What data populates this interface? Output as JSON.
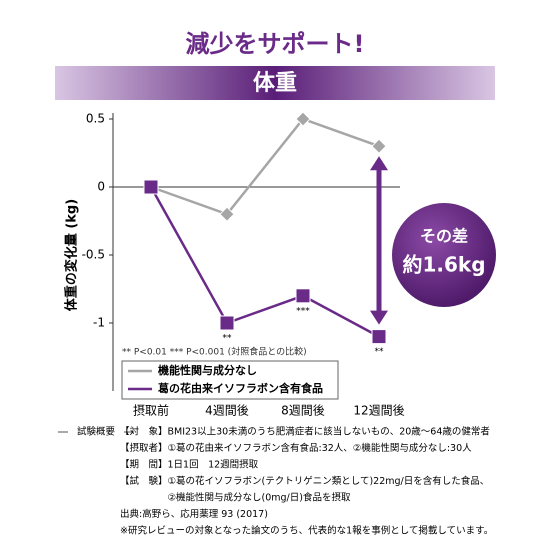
{
  "header": {
    "title": "減少をサポート!",
    "banner": "体重"
  },
  "chart_data": {
    "type": "line",
    "y_label": "体重の変化量 (kg)",
    "categories": [
      "摂取前",
      "4週間後",
      "8週間後",
      "12週間後"
    ],
    "ylim": [
      -1.5,
      0.5
    ],
    "yticks": [
      0.5,
      0,
      -0.5,
      -1
    ],
    "series": [
      {
        "name": "機能性関与成分なし",
        "color": "#a6a6a6",
        "marker": "diamond",
        "values": [
          0,
          -0.2,
          0.5,
          0.3
        ]
      },
      {
        "name": "葛の花由来イソフラボン含有食品",
        "color": "#6a2a88",
        "marker": "square",
        "values": [
          0,
          -1.0,
          -0.8,
          -1.1
        ],
        "significance_labels": [
          null,
          "**",
          "***",
          "**"
        ]
      }
    ],
    "footnote": "** P<0.01 *** P<0.001 (対照食品との比較)",
    "callout": [
      "その差",
      "約1.6kg"
    ]
  },
  "study": {
    "label": "試験概要",
    "lines": [
      "【対　象】BMI23以上30未満のうち肥満症者に該当しないもの、20歳～64歳の健常者",
      "【摂取者】①葛の花由来イソフラボン含有食品:32人、②機能性関与成分なし:30人",
      "【期　間】1日1回　12週間摂取",
      "【試　験】①葛の花イソフラボン(テクトリゲニン類として)22mg/日を含有した食品、",
      "　　　　　②機能性関与成分なし(0mg/日)食品を摂取",
      "出典:高野ら、応用薬理 93 (2017)",
      "※研究レビューの対象となった論文のうち、代表的な1報を事例として掲載しています。"
    ]
  }
}
